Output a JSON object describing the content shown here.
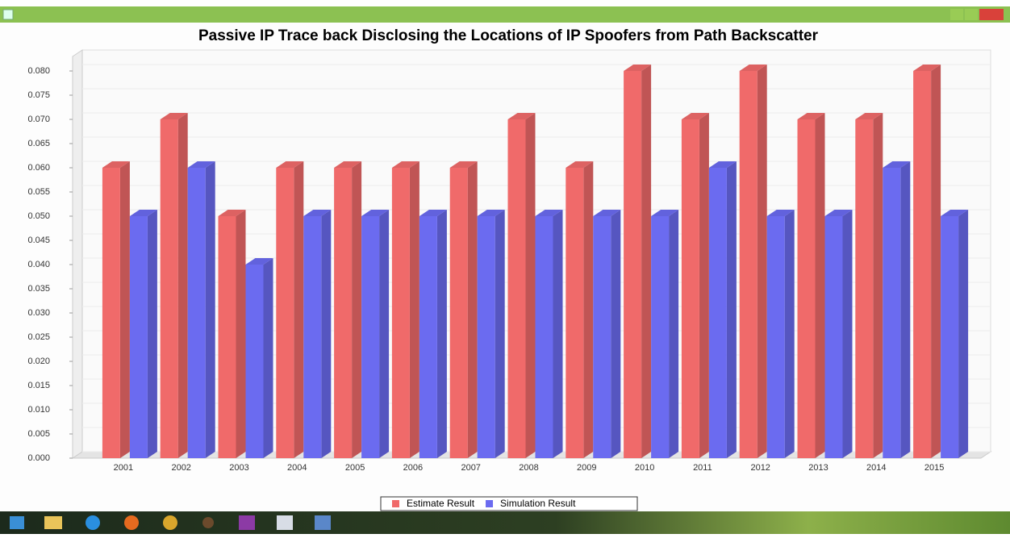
{
  "chart_data": {
    "type": "bar3d",
    "title": "Passive IP Trace back  Disclosing the Locations of IP Spoofers from Path Backscatter",
    "categories": [
      "2001",
      "2002",
      "2003",
      "2004",
      "2005",
      "2006",
      "2007",
      "2008",
      "2009",
      "2010",
      "2011",
      "2012",
      "2013",
      "2014",
      "2015"
    ],
    "series": [
      {
        "name": "Estimate Result",
        "color": "#f06a6a",
        "values": [
          0.06,
          0.07,
          0.05,
          0.06,
          0.06,
          0.06,
          0.06,
          0.07,
          0.06,
          0.08,
          0.07,
          0.08,
          0.07,
          0.07,
          0.08
        ]
      },
      {
        "name": "Simulation Result",
        "color": "#6b6bf0",
        "values": [
          0.05,
          0.06,
          0.04,
          0.05,
          0.05,
          0.05,
          0.05,
          0.05,
          0.05,
          0.05,
          0.06,
          0.05,
          0.05,
          0.06,
          0.05
        ]
      }
    ],
    "ylim": [
      0,
      0.083
    ],
    "yticks": [
      {
        "value": 0,
        "label": "0.000"
      },
      0.005,
      {
        "value": 0.01,
        "label": "0.010"
      },
      0.015,
      {
        "value": 0.02,
        "label": "0.020"
      },
      0.025,
      {
        "value": 0.03,
        "label": "0.030"
      },
      0.035,
      {
        "value": 0.04,
        "label": "0.040"
      },
      0.045,
      {
        "value": 0.05,
        "label": "0.050"
      },
      0.055,
      {
        "value": 0.06,
        "label": "0.060"
      },
      0.065,
      {
        "value": 0.07,
        "label": "0.070"
      },
      0.075,
      {
        "value": 0.08,
        "label": "0.080"
      }
    ],
    "grid": true,
    "legend": "bottom"
  }
}
